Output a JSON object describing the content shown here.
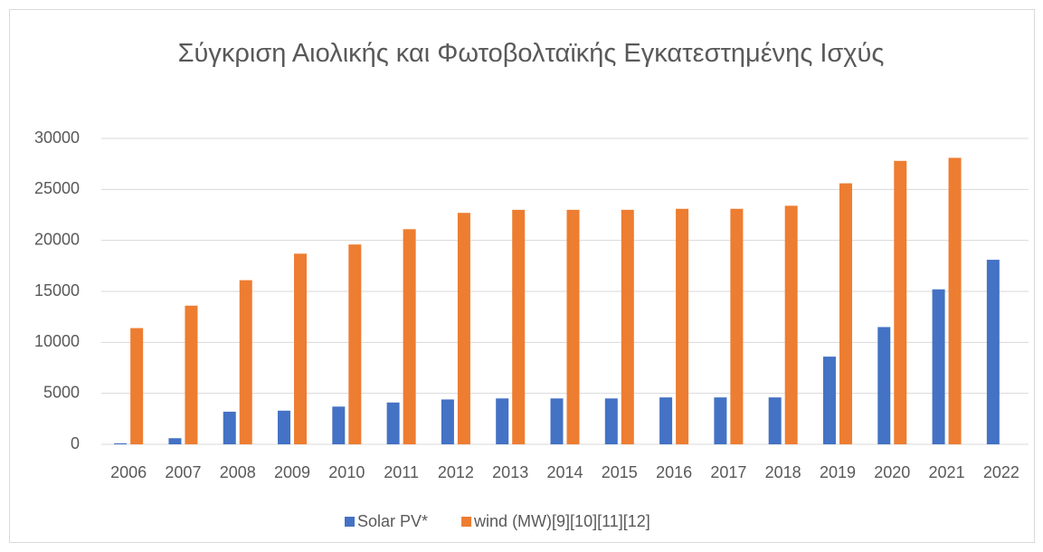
{
  "chart_data": {
    "type": "bar",
    "title": "Σύγκριση Αιολικής και Φωτοβολταϊκής Εγκατεστημένης Ισχύς",
    "categories": [
      "2006",
      "2007",
      "2008",
      "2009",
      "2010",
      "2011",
      "2012",
      "2013",
      "2014",
      "2015",
      "2016",
      "2017",
      "2018",
      "2019",
      "2020",
      "2021",
      "2022"
    ],
    "series": [
      {
        "name": "Solar PV*",
        "color": "#4472c4",
        "values": [
          100,
          600,
          3200,
          3300,
          3700,
          4100,
          4400,
          4500,
          4500,
          4500,
          4600,
          4600,
          4600,
          8600,
          11500,
          15200,
          18100
        ]
      },
      {
        "name": "wind (MW)[9][10][11][12]",
        "color": "#ed7d31",
        "values": [
          11400,
          13600,
          16100,
          18700,
          19600,
          21100,
          22700,
          23000,
          23000,
          23000,
          23100,
          23100,
          23400,
          25600,
          27800,
          28100,
          null
        ]
      }
    ],
    "ylim": [
      0,
      30000
    ],
    "yticks": [
      0,
      5000,
      10000,
      15000,
      20000,
      25000,
      30000
    ],
    "grid": true,
    "legend": "bottom"
  }
}
